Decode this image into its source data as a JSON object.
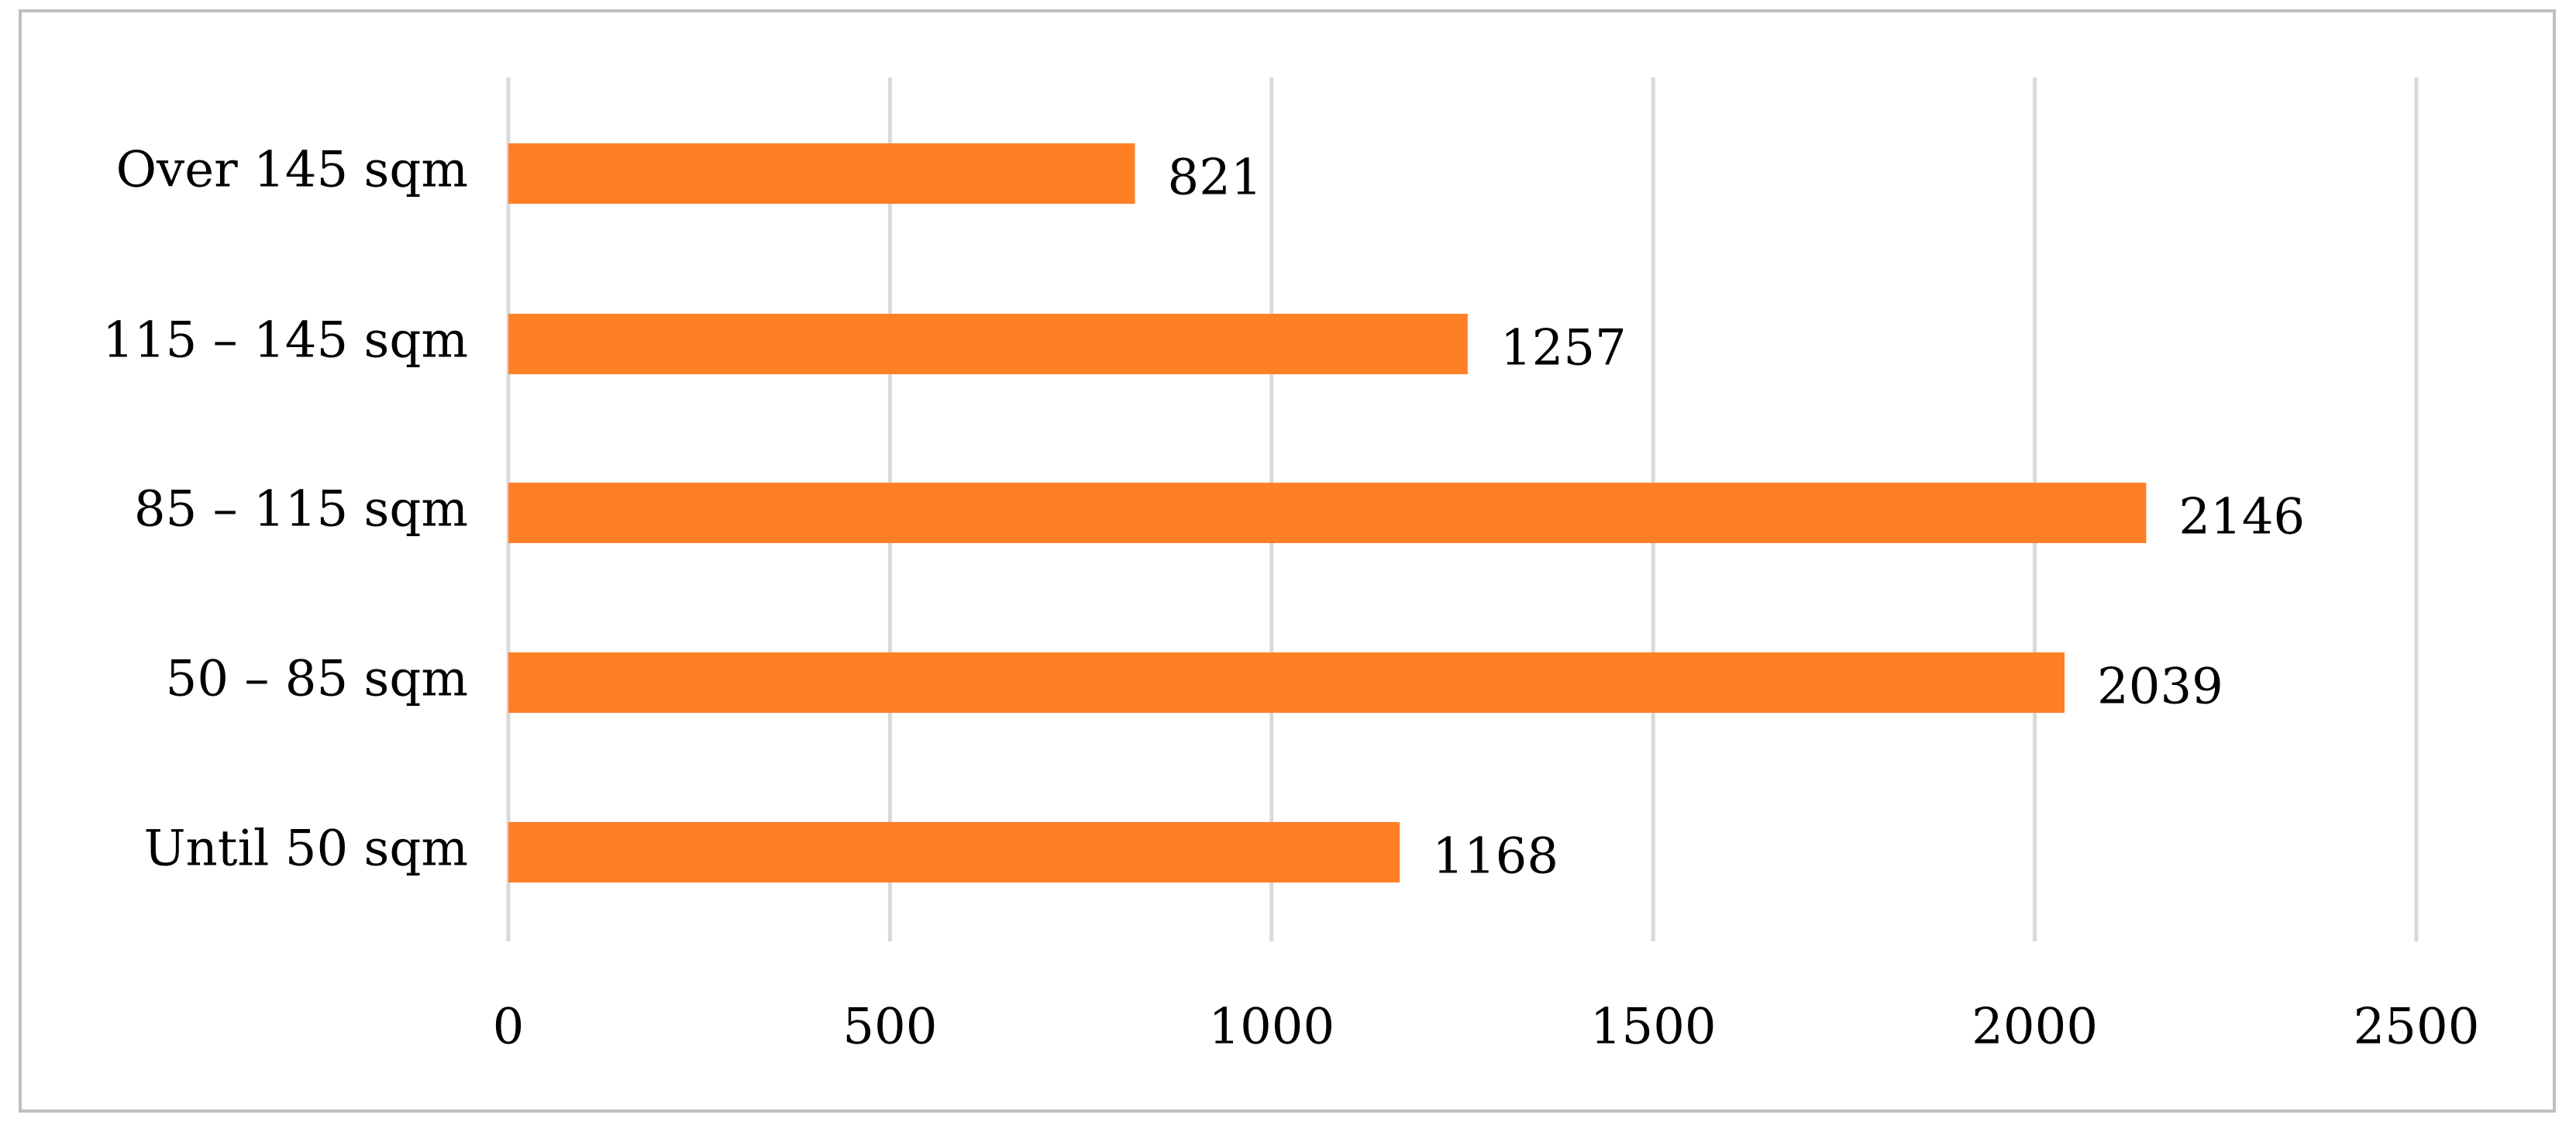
{
  "chart_data": {
    "type": "bar",
    "orientation": "horizontal",
    "title": "",
    "xlabel": "",
    "ylabel": "",
    "categories": [
      "Over 145 sqm",
      "115 – 145 sqm",
      "85 – 115 sqm",
      "50 – 85 sqm",
      "Until 50 sqm"
    ],
    "values": [
      821,
      1257,
      2146,
      2039,
      1168
    ],
    "data_labels": [
      "821",
      "1257",
      "2146",
      "2039",
      "1168"
    ],
    "xlim": [
      0,
      2500
    ],
    "ticks": [
      0,
      500,
      1000,
      1500,
      2000,
      2500
    ],
    "tick_labels": [
      "0",
      "500",
      "1000",
      "1500",
      "2000",
      "2500"
    ],
    "grid": true,
    "legend": "none",
    "colors": {
      "bar": "#FF7F27",
      "grid": "#D9D9D9",
      "border": "#BFBFBF"
    }
  }
}
